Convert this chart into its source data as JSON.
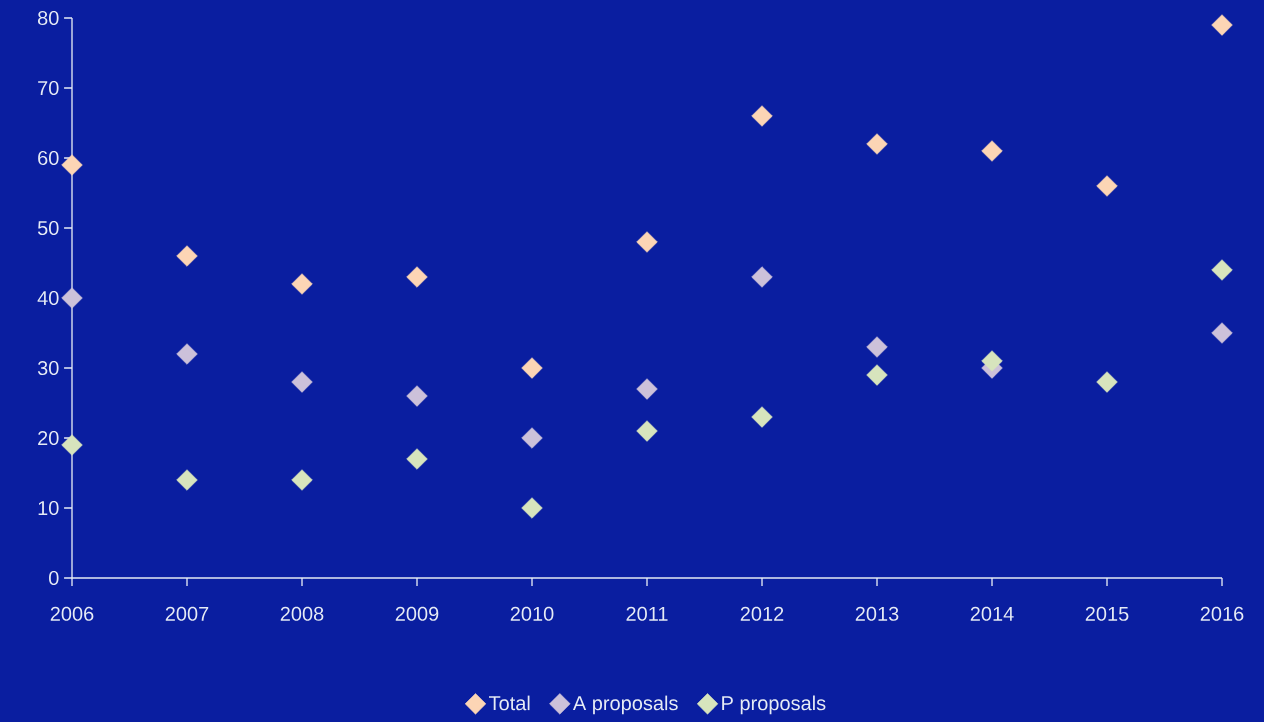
{
  "chart_data": {
    "type": "scatter",
    "x": [
      2006,
      2007,
      2008,
      2009,
      2010,
      2011,
      2012,
      2013,
      2014,
      2015,
      2016
    ],
    "series": [
      {
        "name": "Total",
        "color": "#fcd5b5",
        "values": [
          59,
          46,
          42,
          43,
          30,
          48,
          66,
          62,
          61,
          56,
          79
        ]
      },
      {
        "name": "A proposals",
        "color": "#ccc1da",
        "values": [
          40,
          32,
          28,
          26,
          20,
          27,
          43,
          33,
          30,
          null,
          35
        ]
      },
      {
        "name": "P proposals",
        "color": "#d7e4bd",
        "values": [
          19,
          14,
          14,
          17,
          10,
          21,
          23,
          29,
          31,
          28,
          44
        ]
      }
    ],
    "xlim": [
      2006,
      2016
    ],
    "xticks": [
      2006,
      2007,
      2008,
      2009,
      2010,
      2011,
      2012,
      2013,
      2014,
      2015,
      2016
    ],
    "ylim": [
      0,
      80
    ],
    "yticks": [
      0,
      10,
      20,
      30,
      40,
      50,
      60,
      70,
      80
    ],
    "legend": "bottom",
    "marker": "diamond"
  }
}
